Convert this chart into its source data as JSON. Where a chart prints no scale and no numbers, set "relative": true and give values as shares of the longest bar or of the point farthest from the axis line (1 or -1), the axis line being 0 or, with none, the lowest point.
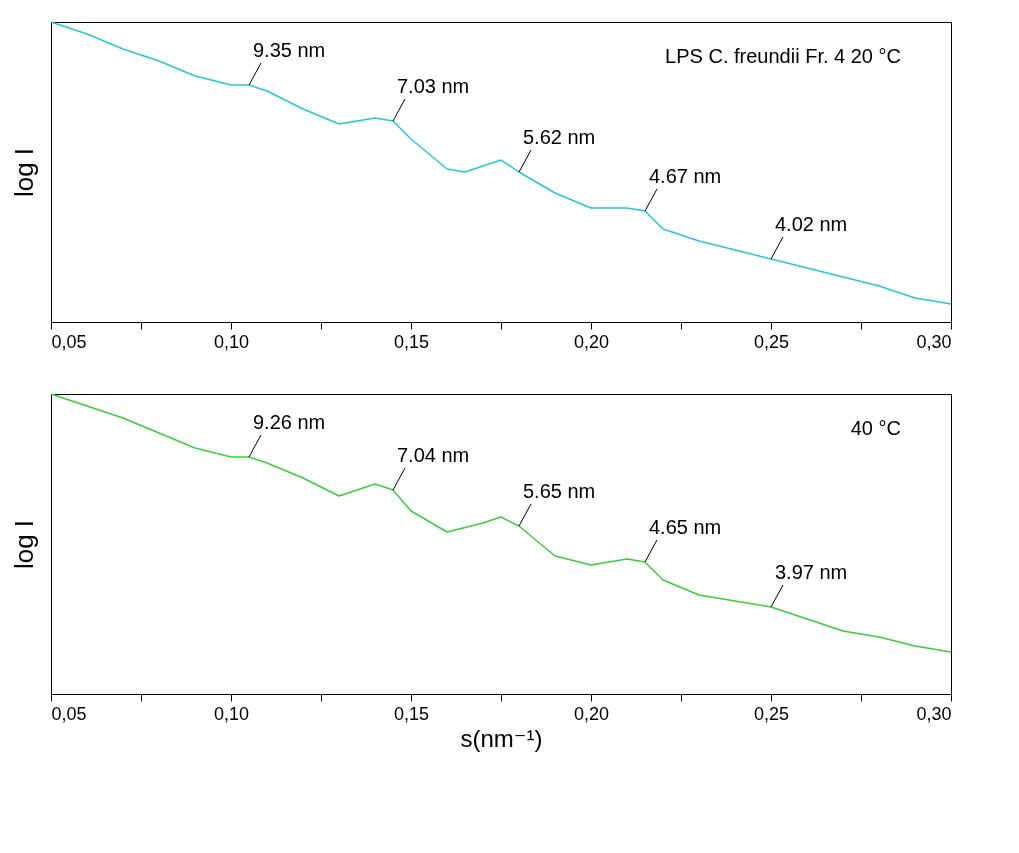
{
  "chart_data": [
    {
      "type": "line",
      "ylabel": "log I",
      "relative": true,
      "tick_labels": "x",
      "x": [
        0.05,
        0.06,
        0.07,
        0.08,
        0.09,
        0.1,
        0.105,
        0.11,
        0.12,
        0.13,
        0.14,
        0.145,
        0.15,
        0.16,
        0.165,
        0.17,
        0.175,
        0.18,
        0.19,
        0.2,
        0.21,
        0.215,
        0.22,
        0.23,
        0.24,
        0.25,
        0.26,
        0.27,
        0.28,
        0.29,
        0.3
      ],
      "series": [
        {
          "color": "#22c8d8",
          "values": [
            1,
            0.96,
            0.91,
            0.87,
            0.82,
            0.79,
            0.79,
            0.77,
            0.71,
            0.66,
            0.68,
            0.67,
            0.61,
            0.51,
            0.5,
            0.52,
            0.54,
            0.5,
            0.43,
            0.38,
            0.38,
            0.37,
            0.31,
            0.27,
            0.24,
            0.21,
            0.18,
            0.15,
            0.12,
            0.08,
            0.06
          ]
        }
      ],
      "xlim": [
        0.05,
        0.3
      ],
      "xticks": [
        {
          "value": 0.05,
          "label": "0,05"
        },
        {
          "value": 0.075,
          "label": null
        },
        {
          "value": 0.1,
          "label": "0,10"
        },
        {
          "value": 0.125,
          "label": null
        },
        {
          "value": 0.15,
          "label": "0,15"
        },
        {
          "value": 0.175,
          "label": null
        },
        {
          "value": 0.2,
          "label": "0,20"
        },
        {
          "value": 0.225,
          "label": null
        },
        {
          "value": 0.25,
          "label": "0,25"
        },
        {
          "value": 0.275,
          "label": null
        },
        {
          "value": 0.3,
          "label": "0,30"
        }
      ],
      "annotations": [
        "LPS C. freundii Fr. 4  20 °C",
        {
          "text": "9.35 nm",
          "x": 0.105,
          "y": 0.79
        },
        {
          "text": "7.03 nm",
          "x": 0.145,
          "y": 0.67
        },
        {
          "text": "5.62 nm",
          "x": 0.18,
          "y": 0.5
        },
        {
          "text": "4.67 nm",
          "x": 0.215,
          "y": 0.37
        },
        {
          "text": "4.02 nm",
          "x": 0.25,
          "y": 0.21
        }
      ]
    },
    {
      "type": "line",
      "ylabel": "log I",
      "xlabel": "s(nm⁻¹)",
      "relative": true,
      "tick_labels": "x",
      "x": [
        0.05,
        0.06,
        0.07,
        0.08,
        0.09,
        0.1,
        0.105,
        0.11,
        0.12,
        0.13,
        0.14,
        0.145,
        0.15,
        0.16,
        0.17,
        0.175,
        0.18,
        0.19,
        0.2,
        0.21,
        0.215,
        0.22,
        0.23,
        0.24,
        0.25,
        0.26,
        0.27,
        0.28,
        0.29,
        0.3
      ],
      "series": [
        {
          "color": "#3ccc3c",
          "values": [
            1,
            0.96,
            0.92,
            0.87,
            0.82,
            0.79,
            0.79,
            0.77,
            0.72,
            0.66,
            0.7,
            0.68,
            0.61,
            0.54,
            0.57,
            0.59,
            0.56,
            0.46,
            0.43,
            0.45,
            0.44,
            0.38,
            0.33,
            0.31,
            0.29,
            0.25,
            0.21,
            0.19,
            0.16,
            0.14
          ]
        }
      ],
      "xlim": [
        0.05,
        0.3
      ],
      "xticks": [
        {
          "value": 0.05,
          "label": "0,05"
        },
        {
          "value": 0.075,
          "label": null
        },
        {
          "value": 0.1,
          "label": "0,10"
        },
        {
          "value": 0.125,
          "label": null
        },
        {
          "value": 0.15,
          "label": "0,15"
        },
        {
          "value": 0.175,
          "label": null
        },
        {
          "value": 0.2,
          "label": "0,20"
        },
        {
          "value": 0.225,
          "label": null
        },
        {
          "value": 0.25,
          "label": "0,25"
        },
        {
          "value": 0.275,
          "label": null
        },
        {
          "value": 0.3,
          "label": "0,30"
        }
      ],
      "annotations": [
        "40 °C",
        {
          "text": "9.26 nm",
          "x": 0.105,
          "y": 0.79
        },
        {
          "text": "7.04 nm",
          "x": 0.145,
          "y": 0.68
        },
        {
          "text": "5.65 nm",
          "x": 0.18,
          "y": 0.56
        },
        {
          "text": "4.65 nm",
          "x": 0.215,
          "y": 0.44
        },
        {
          "text": "3.97 nm",
          "x": 0.25,
          "y": 0.29
        }
      ]
    }
  ]
}
